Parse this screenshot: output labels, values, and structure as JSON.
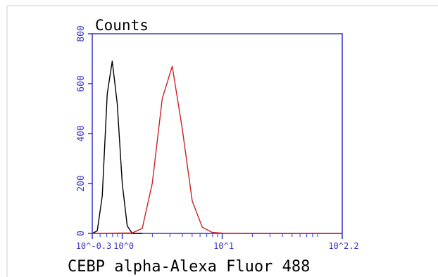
{
  "chart_data": {
    "type": "line",
    "title": "Counts",
    "xlabel": "CEBP alpha-Alexa Fluor 488",
    "ylabel": "",
    "xscale": "log",
    "xlim": [
      -0.3,
      2.2
    ],
    "ylim": [
      0,
      800
    ],
    "x_ticks": [
      {
        "pos": -0.3,
        "label": "10^-0.3"
      },
      {
        "pos": 0,
        "label": "10^0"
      },
      {
        "pos": 1,
        "label": "10^1"
      },
      {
        "pos": 2.2,
        "label": "10^2.2"
      }
    ],
    "y_ticks": [
      0,
      200,
      400,
      600,
      800
    ],
    "series": [
      {
        "color": "#000000",
        "x": [
          -0.3,
          -0.25,
          -0.2,
          -0.15,
          -0.1,
          -0.05,
          0,
          0.05,
          0.1,
          0.15,
          0.2
        ],
        "y": [
          0,
          10,
          150,
          560,
          690,
          520,
          200,
          30,
          0,
          0,
          0
        ]
      },
      {
        "color": "#cc2222",
        "x": [
          -0.3,
          0.1,
          0.2,
          0.3,
          0.4,
          0.5,
          0.6,
          0.7,
          0.8,
          0.9,
          1.0,
          1.2,
          1.5,
          2.2
        ],
        "y": [
          0,
          2,
          20,
          200,
          540,
          670,
          420,
          130,
          25,
          4,
          1,
          0,
          0,
          0
        ]
      }
    ],
    "grid": false,
    "legend": "none"
  }
}
